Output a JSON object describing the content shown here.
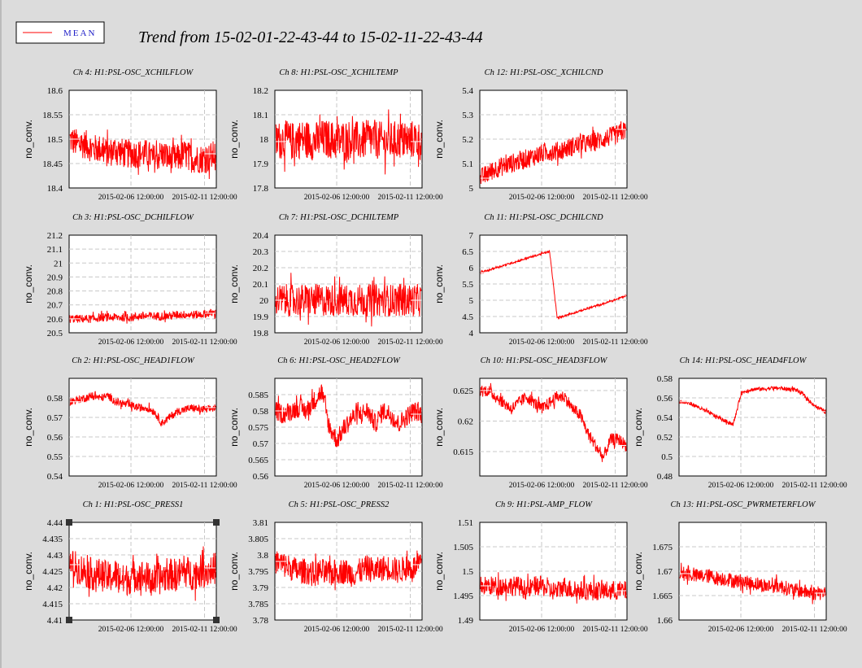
{
  "title": "Trend from 15-02-01-22-43-44 to 15-02-11-22-43-44",
  "legend": {
    "label": "MEAN",
    "color": "#ff0000"
  },
  "colors": {
    "series": "#ff0000",
    "background": "#dcdcdc"
  },
  "chart_data": [
    {
      "type": "line",
      "title": "Ch 4: H1:PSL-OSC_XCHILFLOW",
      "ylabel": "no_conv.",
      "xticks": [
        "2015-02-06 12:00:00",
        "2015-02-11 12:00:00"
      ],
      "ylim": [
        18.4,
        18.6
      ],
      "yticks": [
        "18.6",
        "18.55",
        "18.5",
        "18.45",
        "18.4"
      ],
      "series": [
        {
          "values": [
            18.5,
            18.49,
            18.49,
            18.48,
            18.48,
            18.47,
            18.48,
            18.47,
            18.47,
            18.47,
            18.47,
            18.46,
            18.47,
            18.46,
            18.46,
            18.47,
            18.46,
            18.46,
            18.46,
            18.47
          ],
          "noise": 0.03
        }
      ]
    },
    {
      "type": "line",
      "title": "Ch 8: H1:PSL-OSC_XCHILTEMP",
      "ylabel": "no_conv.",
      "xticks": [
        "2015-02-06 12:00:00",
        "2015-02-11 12:00:00"
      ],
      "ylim": [
        17.8,
        18.2
      ],
      "yticks": [
        "18.2",
        "18.1",
        "18",
        "17.9",
        "17.8"
      ],
      "series": [
        {
          "values": [
            17.99,
            18,
            17.99,
            18,
            18,
            17.99,
            18,
            18,
            17.99,
            18,
            18,
            17.99,
            18,
            18,
            17.99,
            17.99,
            18,
            17.99,
            18,
            17.99
          ],
          "noise": 0.08
        }
      ]
    },
    {
      "type": "line",
      "title": "Ch 12: H1:PSL-OSC_XCHILCND",
      "ylabel": "no_conv.",
      "xticks": [
        "2015-02-06 12:00:00",
        "2015-02-11 12:00:00"
      ],
      "ylim": [
        5,
        5.4
      ],
      "yticks": [
        "5.4",
        "5.3",
        "5.2",
        "5.1",
        "5"
      ],
      "series": [
        {
          "values": [
            5.04,
            5.06,
            5.08,
            5.09,
            5.1,
            5.11,
            5.12,
            5.13,
            5.14,
            5.15,
            5.15,
            5.16,
            5.17,
            5.18,
            5.18,
            5.19,
            5.2,
            5.21,
            5.22,
            5.24
          ],
          "noise": 0.04
        }
      ]
    },
    {
      "type": "line",
      "title": "Ch 3: H1:PSL-OSC_DCHILFLOW",
      "ylabel": "no_conv.",
      "xticks": [
        "2015-02-06 12:00:00",
        "2015-02-11 12:00:00"
      ],
      "ylim": [
        20.5,
        21.2
      ],
      "yticks": [
        "21.2",
        "21.1",
        "21",
        "20.9",
        "20.8",
        "20.7",
        "20.6",
        "20.5"
      ],
      "series": [
        {
          "values": [
            20.6,
            20.6,
            20.6,
            20.6,
            20.61,
            20.61,
            20.61,
            20.61,
            20.61,
            20.62,
            20.62,
            20.62,
            20.62,
            20.62,
            20.63,
            20.63,
            20.63,
            20.63,
            20.64,
            20.64
          ],
          "noise": 0.03
        }
      ]
    },
    {
      "type": "line",
      "title": "Ch 7: H1:PSL-OSC_DCHILTEMP",
      "ylabel": "no_conv.",
      "xticks": [
        "2015-02-06 12:00:00",
        "2015-02-11 12:00:00"
      ],
      "ylim": [
        19.8,
        20.4
      ],
      "yticks": [
        "20.4",
        "20.3",
        "20.2",
        "20.1",
        "20",
        "19.9",
        "19.8"
      ],
      "series": [
        {
          "values": [
            20,
            20,
            20,
            20,
            20,
            20,
            20,
            20,
            20,
            20,
            20,
            20,
            20,
            20,
            20,
            20,
            20,
            20,
            20,
            20
          ],
          "noise": 0.1
        }
      ]
    },
    {
      "type": "line",
      "title": "Ch 11: H1:PSL-OSC_DCHILCND",
      "ylabel": "no_conv.",
      "xticks": [
        "2015-02-06 12:00:00",
        "2015-02-11 12:00:00"
      ],
      "ylim": [
        4,
        7
      ],
      "yticks": [
        "7",
        "6.5",
        "6",
        "5.5",
        "5",
        "4.5",
        "4"
      ],
      "series": [
        {
          "values": [
            5.85,
            5.92,
            6,
            6.07,
            6.14,
            6.21,
            6.29,
            6.36,
            6.43,
            6.5,
            4.45,
            4.53,
            4.6,
            4.67,
            4.75,
            4.82,
            4.89,
            4.97,
            5.05,
            5.15
          ],
          "noise": 0.03
        }
      ]
    },
    {
      "type": "line",
      "title": "Ch 2: H1:PSL-OSC_HEAD1FLOW",
      "ylabel": "no_conv.",
      "xticks": [
        "2015-02-06 12:00:00",
        "2015-02-11 12:00:00"
      ],
      "ylim": [
        0.54,
        0.59
      ],
      "yticks": [
        "0.58",
        "0.57",
        "0.56",
        "0.55",
        "0.54"
      ],
      "series": [
        {
          "values": [
            0.578,
            0.579,
            0.58,
            0.581,
            0.58,
            0.581,
            0.578,
            0.577,
            0.576,
            0.575,
            0.575,
            0.573,
            0.567,
            0.57,
            0.573,
            0.574,
            0.575,
            0.574,
            0.574,
            0.575
          ],
          "noise": 0.002
        }
      ]
    },
    {
      "type": "line",
      "title": "Ch 6: H1:PSL-OSC_HEAD2FLOW",
      "ylabel": "no_conv.",
      "xticks": [
        "2015-02-06 12:00:00",
        "2015-02-11 12:00:00"
      ],
      "ylim": [
        0.56,
        0.59
      ],
      "yticks": [
        "0.585",
        "0.58",
        "0.575",
        "0.57",
        "0.565",
        "0.56"
      ],
      "series": [
        {
          "values": [
            0.58,
            0.579,
            0.58,
            0.581,
            0.58,
            0.583,
            0.586,
            0.575,
            0.571,
            0.575,
            0.578,
            0.579,
            0.58,
            0.576,
            0.58,
            0.579,
            0.576,
            0.578,
            0.58,
            0.579
          ],
          "noise": 0.003
        }
      ]
    },
    {
      "type": "line",
      "title": "Ch 10: H1:PSL-OSC_HEAD3FLOW",
      "ylabel": "no_conv.",
      "xticks": [
        "2015-02-06 12:00:00",
        "2015-02-11 12:00:00"
      ],
      "ylim": [
        0.611,
        0.627
      ],
      "yticks": [
        "0.625",
        "0.62",
        "0.615"
      ],
      "series": [
        {
          "values": [
            0.625,
            0.625,
            0.624,
            0.623,
            0.622,
            0.623,
            0.624,
            0.623,
            0.622,
            0.623,
            0.624,
            0.624,
            0.622,
            0.621,
            0.618,
            0.616,
            0.614,
            0.617,
            0.617,
            0.616
          ],
          "noise": 0.001
        }
      ]
    },
    {
      "type": "line",
      "title": "Ch 14: H1:PSL-OSC_HEAD4FLOW",
      "ylabel": "no_conv.",
      "xticks": [
        "2015-02-06 12:00:00",
        "2015-02-11 12:00:00"
      ],
      "ylim": [
        0.48,
        0.58
      ],
      "yticks": [
        "0.58",
        "0.56",
        "0.54",
        "0.52",
        "0.5",
        "0.48"
      ],
      "series": [
        {
          "values": [
            0.556,
            0.555,
            0.552,
            0.548,
            0.544,
            0.54,
            0.536,
            0.533,
            0.565,
            0.568,
            0.569,
            0.569,
            0.57,
            0.57,
            0.569,
            0.569,
            0.564,
            0.556,
            0.55,
            0.546
          ],
          "noise": 0.002
        }
      ]
    },
    {
      "type": "line",
      "title": "Ch 1: H1:PSL-OSC_PRESS1",
      "ylabel": "no_conv.",
      "xticks": [
        "2015-02-06 12:00:00",
        "2015-02-11 12:00:00"
      ],
      "ylim": [
        4.41,
        4.44
      ],
      "yticks": [
        "4.44",
        "4.435",
        "4.43",
        "4.425",
        "4.42",
        "4.415",
        "4.41"
      ],
      "series": [
        {
          "values": [
            4.427,
            4.426,
            4.425,
            4.424,
            4.424,
            4.423,
            4.424,
            4.422,
            4.423,
            4.424,
            4.423,
            4.422,
            4.423,
            4.424,
            4.424,
            4.425,
            4.424,
            4.425,
            4.425,
            4.426
          ],
          "noise": 0.005
        }
      ]
    },
    {
      "type": "line",
      "title": "Ch 5: H1:PSL-OSC_PRESS2",
      "ylabel": "no_conv.",
      "xticks": [
        "2015-02-06 12:00:00",
        "2015-02-11 12:00:00"
      ],
      "ylim": [
        3.78,
        3.81
      ],
      "yticks": [
        "3.81",
        "3.805",
        "3.8",
        "3.795",
        "3.79",
        "3.785",
        "3.78"
      ],
      "series": [
        {
          "values": [
            3.798,
            3.797,
            3.796,
            3.795,
            3.795,
            3.794,
            3.795,
            3.794,
            3.795,
            3.795,
            3.794,
            3.795,
            3.796,
            3.795,
            3.796,
            3.796,
            3.795,
            3.796,
            3.796,
            3.797
          ],
          "noise": 0.004
        }
      ]
    },
    {
      "type": "line",
      "title": "Ch 9: H1:PSL-AMP_FLOW",
      "ylabel": "no_conv.",
      "xticks": [
        "2015-02-06 12:00:00",
        "2015-02-11 12:00:00"
      ],
      "ylim": [
        1.49,
        1.51
      ],
      "yticks": [
        "1.51",
        "1.505",
        "1.5",
        "1.495",
        "1.49"
      ],
      "series": [
        {
          "values": [
            1.497,
            1.497,
            1.497,
            1.497,
            1.497,
            1.497,
            1.496,
            1.497,
            1.497,
            1.496,
            1.496,
            1.497,
            1.496,
            1.496,
            1.496,
            1.496,
            1.496,
            1.496,
            1.496,
            1.496
          ],
          "noise": 0.002
        }
      ]
    },
    {
      "type": "line",
      "title": "Ch 13: H1:PSL-OSC_PWRMETERFLOW",
      "ylabel": "no_conv.",
      "xticks": [
        "2015-02-06 12:00:00",
        "2015-02-11 12:00:00"
      ],
      "ylim": [
        1.66,
        1.68
      ],
      "yticks": [
        "1.675",
        "1.67",
        "1.665",
        "1.66"
      ],
      "series": [
        {
          "values": [
            1.6695,
            1.6695,
            1.669,
            1.669,
            1.669,
            1.6685,
            1.6685,
            1.668,
            1.668,
            1.6675,
            1.6675,
            1.667,
            1.667,
            1.667,
            1.6665,
            1.666,
            1.666,
            1.6655,
            1.6655,
            1.6655
          ],
          "noise": 0.0015
        }
      ]
    }
  ]
}
